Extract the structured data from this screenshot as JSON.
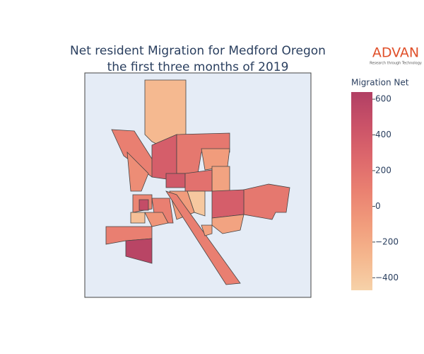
{
  "chart_data": {
    "type": "choropleth",
    "title": [
      "Net resident Migration for Medford Oregon",
      "the first three months of 2019"
    ],
    "logo": {
      "name": "ADVAN",
      "tagline": "Research through Technology"
    },
    "colorbar": {
      "title": "Migration Net",
      "lim": [
        -470,
        640
      ],
      "ticks": [
        600,
        400,
        200,
        0,
        {
          "value": -200,
          "label": "−200"
        },
        {
          "value": -400,
          "label": "−400"
        }
      ],
      "colors": [
        "#f6d2a9",
        "#f5b78e",
        "#f19c7c",
        "#ea8171",
        "#dd686c",
        "#ca5268",
        "#b13f64"
      ]
    },
    "values": [
      -300,
      100,
      0,
      350,
      150,
      -100,
      -150,
      400,
      200,
      150,
      350,
      -400,
      -100,
      -150,
      100,
      50,
      500,
      100,
      -350,
      100,
      580,
      -50,
      -150
    ]
  }
}
